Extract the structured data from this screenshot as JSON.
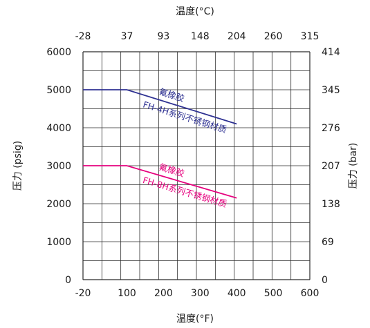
{
  "chart_data": {
    "type": "line",
    "title": "",
    "top_axis": {
      "label": "温度(°C)",
      "ticks": [
        "-28",
        "37",
        "93",
        "148",
        "204",
        "260",
        "315"
      ]
    },
    "bottom_axis": {
      "label": "温度(°F)",
      "ticks": [
        "-20",
        "100",
        "200",
        "300",
        "400",
        "500",
        "600"
      ],
      "tick_values": [
        -20,
        100,
        200,
        300,
        400,
        500,
        600
      ],
      "xlim": [
        -20,
        600
      ]
    },
    "left_axis": {
      "label": "压力 (psig)",
      "ticks": [
        "0",
        "1000",
        "2000",
        "3000",
        "4000",
        "5000",
        "6000"
      ],
      "tick_values": [
        0,
        1000,
        2000,
        3000,
        4000,
        5000,
        6000
      ],
      "ylim": [
        0,
        6000
      ]
    },
    "right_axis": {
      "label": "压力 (bar)",
      "ticks": [
        "0",
        "69",
        "138",
        "207",
        "276",
        "345",
        "414"
      ]
    },
    "grid": true,
    "series": [
      {
        "color": "#2e3192",
        "x": [
          -20,
          100,
          400
        ],
        "y": [
          5000,
          5000,
          4100
        ],
        "annotations": [
          "氟橡胶",
          "FH-4H系列不锈钢材质"
        ]
      },
      {
        "color": "#e6007e",
        "x": [
          -20,
          100,
          400
        ],
        "y": [
          3000,
          3000,
          2150
        ],
        "annotations": [
          "氟橡胶",
          "FH-8H系列不锈钢材质"
        ]
      }
    ]
  }
}
